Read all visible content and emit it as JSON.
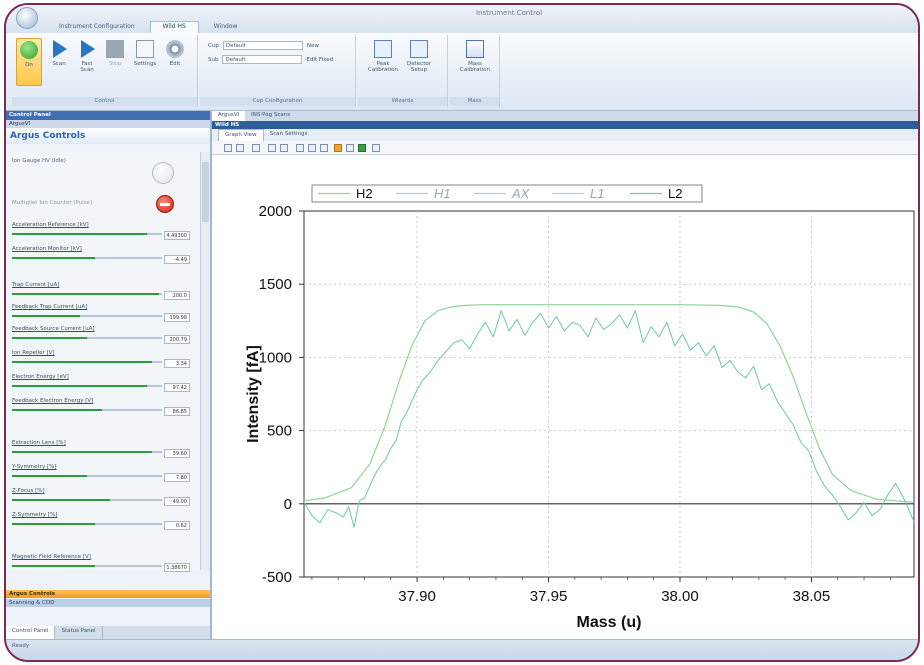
{
  "window": {
    "title": "Instrument Control",
    "ribbon_tabs": [
      "Instrument Configuration",
      "Wild HS",
      "Window"
    ]
  },
  "ribbon": {
    "control": {
      "label": "Control",
      "buttons": [
        {
          "label": "On",
          "icon": "power-on-icon"
        },
        {
          "label": "Scan",
          "icon": "play-icon"
        },
        {
          "label": "Fast Scan",
          "icon": "fast-play-icon"
        },
        {
          "label": "Stop",
          "icon": "stop-icon"
        },
        {
          "label": "Settings",
          "icon": "document-icon"
        },
        {
          "label": "Edit",
          "icon": "gear-icon"
        }
      ]
    },
    "cup_configuration": {
      "label": "Cup Configuration",
      "cup_label": "Cup",
      "cup_value": "Default",
      "sub_label": "Sub",
      "sub_value": "Default",
      "new_label": "New",
      "edit_label": "Edit Fixed"
    },
    "wizards": {
      "label": "Wizards",
      "buttons": [
        {
          "label": "Peak Calibration",
          "icon": "peak-calibration-icon"
        },
        {
          "label": "Detector Setup",
          "icon": "detector-setup-icon"
        }
      ]
    },
    "mass": {
      "label": "Mass",
      "buttons": [
        {
          "label": "Mass Calibration",
          "icon": "mass-calibration-icon"
        }
      ]
    }
  },
  "left_panel": {
    "header": "Control Panel",
    "subheader": "ArgusVI",
    "title": "Argus Controls",
    "toggle_1": "Ion Gauge HV (Idle)",
    "toggle_2": "Multiplier Ion Counter (Pulse)",
    "sliders": [
      {
        "label": "Acceleration Reference [kV]",
        "value": "4.49300",
        "level": 0.9
      },
      {
        "label": "Acceleration Monitor [kV]",
        "value": "-4.49",
        "level": 0.55
      },
      {
        "label": "Trap Current [uA]",
        "value": "200.0",
        "level": 0.98
      },
      {
        "label": "Feedback Trap Current [uA]",
        "value": "199.98",
        "level": 0.45
      },
      {
        "label": "Feedback Source Current [uA]",
        "value": "200.79",
        "level": 0.5
      },
      {
        "label": "Ion Repeller [V]",
        "value": "3.34",
        "level": 0.93
      },
      {
        "label": "Electron Energy [eV]",
        "value": "97.42",
        "level": 0.9
      },
      {
        "label": "Feedback Electron Energy [V]",
        "value": "86.85",
        "level": 0.6
      },
      {
        "label": "Extraction Lens [%]",
        "value": "39.60",
        "level": 0.93
      },
      {
        "label": "Y-Symmetry [%]",
        "value": "7.80",
        "level": 0.5
      },
      {
        "label": "Z-Focus [%]",
        "value": "49.00",
        "level": 0.65
      },
      {
        "label": "Z-Symmetry [%]",
        "value": "0.62",
        "level": 0.55
      },
      {
        "label": "Magnetic Field Reference [V]",
        "value": "1.38670",
        "level": 0.55
      }
    ],
    "accordion_1": "Argus Controls",
    "accordion_2": "Scanning & CDD",
    "tabs": [
      "Control Panel",
      "Status Panel"
    ],
    "status": "Ready"
  },
  "document": {
    "tabs": [
      "ArgusVI",
      "INS Peg Scans"
    ],
    "header": "Wild HS",
    "view_tabs": [
      "Graph View",
      "Scan Settings"
    ]
  },
  "chart_data": {
    "type": "line",
    "title": "",
    "xlabel": "Mass (u)",
    "ylabel": "Intensity [fA]",
    "xlim": [
      37.857,
      38.089
    ],
    "ylim": [
      -500,
      2000
    ],
    "x_ticks": [
      "37.90",
      "37.95",
      "38.00",
      "38.05"
    ],
    "y_ticks": [
      "2000",
      "1500",
      "1000",
      "500",
      "0",
      "-500"
    ],
    "grid": true,
    "legend_position": "top",
    "legend": [
      {
        "name": "H2",
        "color": "#8fd49a",
        "style": "normal"
      },
      {
        "name": "H1",
        "color": "#b8c6d6",
        "style": "italic"
      },
      {
        "name": "AX",
        "color": "#b8c6d6",
        "style": "italic"
      },
      {
        "name": "L1",
        "color": "#b8c6d6",
        "style": "italic"
      },
      {
        "name": "L2",
        "color": "#6fc7ad",
        "style": "normal"
      }
    ],
    "baseline": 0,
    "series": [
      {
        "name": "H2",
        "color": "#8fd49a",
        "x": [
          37.857,
          37.865,
          37.875,
          37.882,
          37.888,
          37.893,
          37.898,
          37.903,
          37.908,
          37.913,
          37.918,
          37.925,
          37.95,
          37.975,
          38.0,
          38.015,
          38.022,
          38.028,
          38.033,
          38.038,
          38.043,
          38.048,
          38.053,
          38.058,
          38.065,
          38.075,
          38.089
        ],
        "y": [
          20,
          40,
          110,
          270,
          540,
          830,
          1080,
          1250,
          1320,
          1345,
          1355,
          1360,
          1360,
          1360,
          1360,
          1355,
          1345,
          1310,
          1230,
          1080,
          870,
          620,
          380,
          200,
          90,
          30,
          10
        ]
      },
      {
        "name": "L2",
        "color": "#6fc7ad",
        "x": [
          37.857,
          37.86,
          37.863,
          37.866,
          37.869,
          37.872,
          37.874,
          37.876,
          37.878,
          37.88,
          37.882,
          37.884,
          37.886,
          37.888,
          37.89,
          37.892,
          37.894,
          37.896,
          37.898,
          37.9,
          37.902,
          37.905,
          37.908,
          37.911,
          37.914,
          37.917,
          37.92,
          37.923,
          37.926,
          37.929,
          37.932,
          37.935,
          37.938,
          37.941,
          37.944,
          37.947,
          37.95,
          37.953,
          37.956,
          37.959,
          37.962,
          37.965,
          37.968,
          37.971,
          37.974,
          37.977,
          37.98,
          37.983,
          37.986,
          37.989,
          37.992,
          37.995,
          37.998,
          38.001,
          38.004,
          38.007,
          38.01,
          38.013,
          38.016,
          38.019,
          38.022,
          38.025,
          38.028,
          38.031,
          38.034,
          38.037,
          38.04,
          38.043,
          38.046,
          38.049,
          38.052,
          38.055,
          38.058,
          38.061,
          38.064,
          38.067,
          38.07,
          38.073,
          38.076,
          38.079,
          38.082,
          38.085,
          38.089
        ],
        "y": [
          10,
          -80,
          -130,
          -40,
          -60,
          -90,
          -20,
          -160,
          20,
          40,
          120,
          200,
          260,
          300,
          380,
          430,
          560,
          620,
          700,
          780,
          840,
          900,
          980,
          1040,
          1100,
          1120,
          1060,
          1160,
          1240,
          1140,
          1320,
          1180,
          1260,
          1150,
          1240,
          1300,
          1200,
          1280,
          1180,
          1240,
          1220,
          1140,
          1270,
          1190,
          1230,
          1290,
          1200,
          1320,
          1100,
          1210,
          1140,
          1240,
          1080,
          1160,
          1050,
          1100,
          1010,
          1080,
          930,
          980,
          900,
          860,
          940,
          780,
          820,
          700,
          620,
          540,
          420,
          360,
          220,
          120,
          60,
          -20,
          -110,
          -60,
          10,
          -80,
          -40,
          60,
          140,
          40,
          -120
        ]
      }
    ]
  }
}
